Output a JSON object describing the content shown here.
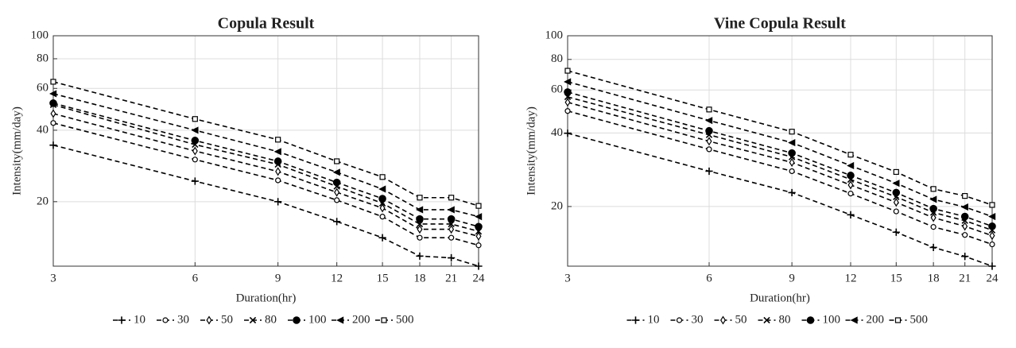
{
  "chart_data": [
    {
      "type": "line",
      "title": "Copula Result",
      "x_label": "Duration(hr)",
      "y_label": "Intensity(mm/day)",
      "x": [
        3,
        6,
        9,
        12,
        15,
        18,
        21,
        24
      ],
      "xlim": [
        3,
        24
      ],
      "xticks": [
        3,
        6,
        9,
        12,
        15,
        18,
        21,
        24
      ],
      "ylim": [
        10.7,
        100
      ],
      "yticks": [
        20,
        40,
        60,
        80,
        100
      ],
      "x_scale": "log",
      "y_scale": "log",
      "grid": true,
      "legend": "bottom",
      "series": [
        {
          "name": "10",
          "color": "#000000",
          "marker": "plus",
          "values": [
            34.6,
            24.4,
            20,
            16.5,
            14.1,
            11.8,
            11.6,
            10.7
          ]
        },
        {
          "name": "30",
          "color": "#000000",
          "marker": "circle",
          "values": [
            42.9,
            30.1,
            24.6,
            20.3,
            17.3,
            14.1,
            14.1,
            13.1
          ]
        },
        {
          "name": "50",
          "color": "#000000",
          "marker": "diamond",
          "values": [
            47.0,
            32.7,
            26.8,
            21.9,
            18.8,
            15.3,
            15.3,
            14.3
          ]
        },
        {
          "name": "80",
          "color": "#000000",
          "marker": "cross",
          "values": [
            51.2,
            34.8,
            28.7,
            23.2,
            19.7,
            16.1,
            16.1,
            15.0
          ]
        },
        {
          "name": "100",
          "color": "#000000",
          "marker": "dot",
          "values": [
            52.0,
            36.2,
            29.6,
            24.1,
            20.6,
            16.9,
            16.9,
            15.7
          ]
        },
        {
          "name": "200",
          "color": "#000000",
          "marker": "triangle-left",
          "values": [
            57.0,
            40.0,
            32.5,
            26.6,
            22.6,
            18.5,
            18.5,
            17.3
          ]
        },
        {
          "name": "500",
          "color": "#000000",
          "marker": "square",
          "values": [
            64.0,
            44.6,
            36.5,
            29.6,
            25.4,
            20.8,
            20.8,
            19.2
          ]
        }
      ]
    },
    {
      "type": "line",
      "title": "Vine Copula Result",
      "x_label": "Duration(hr)",
      "y_label": "Intensity(mm/day)",
      "x": [
        3,
        6,
        9,
        12,
        15,
        18,
        21,
        24
      ],
      "xlim": [
        3,
        24
      ],
      "xticks": [
        3,
        6,
        9,
        12,
        15,
        18,
        21,
        24
      ],
      "ylim": [
        11.4,
        100
      ],
      "yticks": [
        20,
        40,
        60,
        80,
        100
      ],
      "x_scale": "log",
      "y_scale": "log",
      "grid": true,
      "legend": "bottom",
      "series": [
        {
          "name": "10",
          "color": "#000000",
          "marker": "plus",
          "values": [
            39.9,
            27.9,
            22.8,
            18.5,
            15.7,
            13.6,
            12.5,
            11.4
          ]
        },
        {
          "name": "30",
          "color": "#000000",
          "marker": "circle",
          "values": [
            49.2,
            34.3,
            27.9,
            22.6,
            19.1,
            16.5,
            15.3,
            14.0
          ]
        },
        {
          "name": "50",
          "color": "#000000",
          "marker": "diamond",
          "values": [
            53.4,
            37.0,
            30.3,
            24.5,
            20.8,
            18.0,
            16.6,
            15.2
          ]
        },
        {
          "name": "80",
          "color": "#000000",
          "marker": "cross",
          "values": [
            56.2,
            39.3,
            31.9,
            25.8,
            21.9,
            18.9,
            17.5,
            16.0
          ]
        },
        {
          "name": "100",
          "color": "#000000",
          "marker": "dot",
          "values": [
            58.8,
            40.8,
            33.1,
            26.8,
            22.8,
            19.6,
            18.2,
            16.6
          ]
        },
        {
          "name": "200",
          "color": "#000000",
          "marker": "triangle-left",
          "values": [
            64.8,
            45.0,
            36.5,
            29.4,
            24.9,
            21.4,
            19.9,
            18.2
          ]
        },
        {
          "name": "500",
          "color": "#000000",
          "marker": "square",
          "values": [
            71.9,
            49.9,
            40.5,
            32.6,
            27.7,
            23.6,
            22.1,
            20.3
          ]
        }
      ]
    }
  ]
}
